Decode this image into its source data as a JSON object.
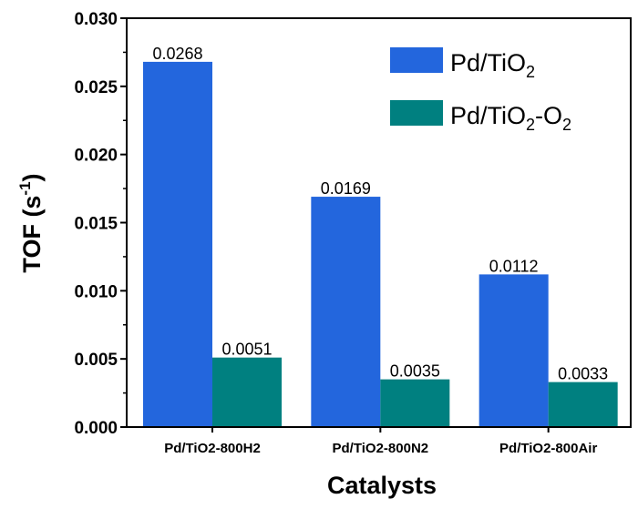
{
  "chart_data": {
    "type": "bar",
    "categories": [
      "Pd/TiO2-800H2",
      "Pd/TiO2-800N2",
      "Pd/TiO2-800Air"
    ],
    "series": [
      {
        "name": "Pd/TiO2",
        "values": [
          0.0268,
          0.0169,
          0.0112
        ],
        "color": "#2366dd",
        "labels": [
          "0.0268",
          "0.0169",
          "0.0112"
        ]
      },
      {
        "name": "Pd/TiO2-O2",
        "values": [
          0.0051,
          0.0035,
          0.0033
        ],
        "color": "#008080",
        "labels": [
          "0.0051",
          "0.0035",
          "0.0033"
        ]
      }
    ],
    "xlabel": "Catalysts",
    "ylabel": "TOF (s-1)",
    "ylim": [
      0,
      0.03
    ],
    "yticks": [
      "0.000",
      "0.005",
      "0.010",
      "0.015",
      "0.020",
      "0.025",
      "0.030"
    ],
    "grid": false,
    "legend": "top-right"
  }
}
